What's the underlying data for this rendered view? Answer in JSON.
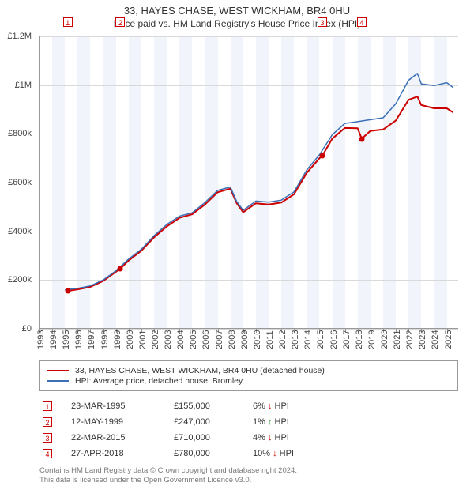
{
  "title": "33, HAYES CHASE, WEST WICKHAM, BR4 0HU",
  "subtitle": "Price paid vs. HM Land Registry's House Price Index (HPI)",
  "chart": {
    "type": "line",
    "background_color": "#ffffff",
    "band_color": "#f1f5fb",
    "grid_color": "#d9d9d9",
    "x": {
      "min": 1993,
      "max": 2025.9,
      "ticks": [
        1993,
        1994,
        1995,
        1996,
        1997,
        1998,
        1999,
        2000,
        2001,
        2002,
        2003,
        2004,
        2005,
        2006,
        2007,
        2008,
        2009,
        2010,
        2011,
        2012,
        2013,
        2014,
        2015,
        2016,
        2017,
        2018,
        2019,
        2020,
        2021,
        2022,
        2023,
        2024,
        2025
      ]
    },
    "y": {
      "min": 0,
      "max": 1200000,
      "ticks": [
        0,
        200000,
        400000,
        600000,
        800000,
        1000000,
        1200000
      ],
      "tick_labels": [
        "£0",
        "£200k",
        "£400k",
        "£600k",
        "£800k",
        "£1M",
        "£1.2M"
      ]
    },
    "series": [
      {
        "name": "subject",
        "color": "#cc0000",
        "width": 2,
        "label": "33, HAYES CHASE, WEST WICKHAM, BR4 0HU (detached house)",
        "points": [
          [
            1995.22,
            155000
          ],
          [
            1996,
            162000
          ],
          [
            1997,
            172000
          ],
          [
            1998,
            196000
          ],
          [
            1999,
            234000
          ],
          [
            1999.36,
            247000
          ],
          [
            2000,
            280000
          ],
          [
            2001,
            320000
          ],
          [
            2002,
            375000
          ],
          [
            2003,
            420000
          ],
          [
            2004,
            455000
          ],
          [
            2005,
            470000
          ],
          [
            2006,
            510000
          ],
          [
            2007,
            560000
          ],
          [
            2008,
            575000
          ],
          [
            2008.5,
            515000
          ],
          [
            2009,
            478000
          ],
          [
            2010,
            515000
          ],
          [
            2011,
            510000
          ],
          [
            2012,
            518000
          ],
          [
            2013,
            552000
          ],
          [
            2014,
            640000
          ],
          [
            2015,
            700000
          ],
          [
            2015.22,
            710000
          ],
          [
            2016,
            780000
          ],
          [
            2017,
            824000
          ],
          [
            2018,
            823000
          ],
          [
            2018.32,
            780000
          ],
          [
            2019,
            812000
          ],
          [
            2020,
            818000
          ],
          [
            2021,
            855000
          ],
          [
            2022,
            940000
          ],
          [
            2022.7,
            953000
          ],
          [
            2023,
            918000
          ],
          [
            2024,
            905000
          ],
          [
            2025,
            905000
          ],
          [
            2025.5,
            888000
          ]
        ]
      },
      {
        "name": "hpi",
        "color": "#3b6fb6",
        "width": 1.5,
        "label": "HPI: Average price, detached house, Bromley",
        "points": [
          [
            1995,
            160000
          ],
          [
            1996,
            166000
          ],
          [
            1997,
            176000
          ],
          [
            1998,
            200000
          ],
          [
            1999,
            238000
          ],
          [
            2000,
            286000
          ],
          [
            2001,
            326000
          ],
          [
            2002,
            382000
          ],
          [
            2003,
            428000
          ],
          [
            2004,
            462000
          ],
          [
            2005,
            476000
          ],
          [
            2006,
            518000
          ],
          [
            2007,
            568000
          ],
          [
            2008,
            582000
          ],
          [
            2008.5,
            522000
          ],
          [
            2009,
            486000
          ],
          [
            2010,
            524000
          ],
          [
            2011,
            520000
          ],
          [
            2012,
            528000
          ],
          [
            2013,
            562000
          ],
          [
            2014,
            652000
          ],
          [
            2015,
            714000
          ],
          [
            2016,
            796000
          ],
          [
            2017,
            843000
          ],
          [
            2018,
            850000
          ],
          [
            2019,
            858000
          ],
          [
            2020,
            866000
          ],
          [
            2021,
            924000
          ],
          [
            2022,
            1020000
          ],
          [
            2022.7,
            1048000
          ],
          [
            2023,
            1005000
          ],
          [
            2024,
            998000
          ],
          [
            2025,
            1010000
          ],
          [
            2025.5,
            990000
          ]
        ]
      }
    ],
    "markers_top_y": -24
  },
  "sales": [
    {
      "n": "1",
      "year": 1995.22,
      "value": 155000,
      "date": "23-MAR-1995",
      "price": "£155,000",
      "delta": "6%",
      "dir": "down",
      "vs": "HPI"
    },
    {
      "n": "2",
      "year": 1999.36,
      "value": 247000,
      "date": "12-MAY-1999",
      "price": "£247,000",
      "delta": "1%",
      "dir": "up",
      "vs": "HPI"
    },
    {
      "n": "3",
      "year": 2015.22,
      "value": 710000,
      "date": "22-MAR-2015",
      "price": "£710,000",
      "delta": "4%",
      "dir": "down",
      "vs": "HPI"
    },
    {
      "n": "4",
      "year": 2018.32,
      "value": 780000,
      "date": "27-APR-2018",
      "price": "£780,000",
      "delta": "10%",
      "dir": "down",
      "vs": "HPI"
    }
  ],
  "footer": {
    "l1": "Contains HM Land Registry data © Crown copyright and database right 2024.",
    "l2": "This data is licensed under the Open Government Licence v3.0."
  },
  "colors": {
    "subject": "#cc0000",
    "hpi": "#3b6fb6",
    "arrow_down": "#cc0000",
    "arrow_up": "#1a8a1a"
  }
}
